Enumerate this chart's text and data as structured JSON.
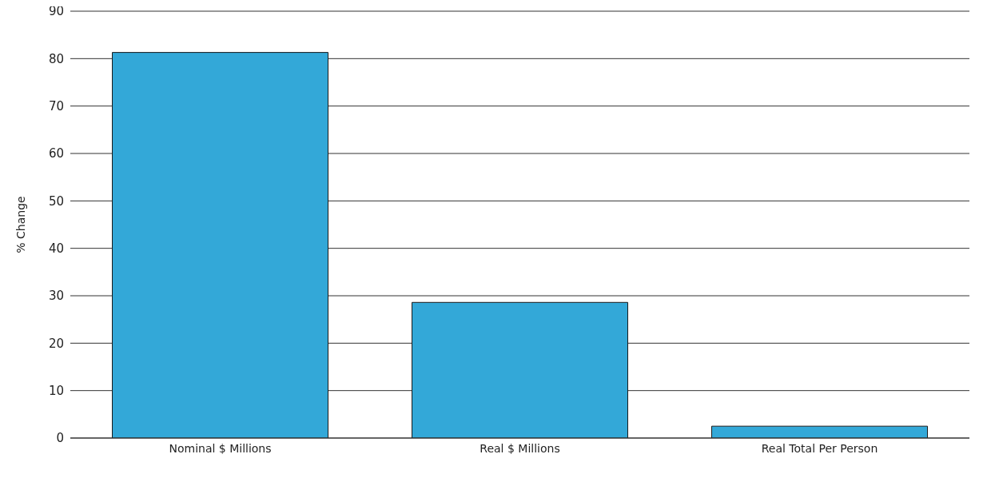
{
  "chart_data": {
    "type": "bar",
    "ylabel": "% Change",
    "categories": [
      "Nominal $ Millions",
      "Real $ Millions",
      "Real Total Per Person"
    ],
    "values": [
      81.3,
      28.6,
      2.5
    ],
    "color": "#33a8d8",
    "ylim": [
      0,
      90
    ],
    "yticks": [
      0,
      10,
      20,
      30,
      40,
      50,
      60,
      70,
      80,
      90
    ],
    "grid": "y"
  }
}
